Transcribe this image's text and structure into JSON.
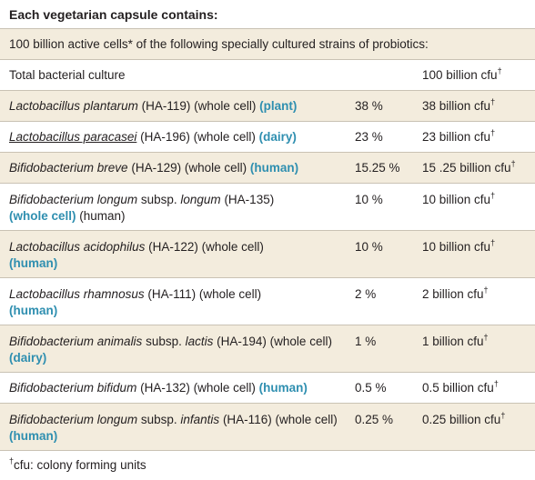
{
  "heading": "Each vegetarian capsule contains:",
  "intro": "100 billion active cells* of the following specially cultured strains of probiotics:",
  "total": {
    "label": "Total bacterial culture",
    "amount": "100 billion cfu",
    "mark": "†"
  },
  "rows": [
    {
      "genus": "Lactobacillus plantarum",
      "code": "(HA-119) (whole cell)",
      "source": "(plant)",
      "percent": "38 %",
      "amount": "38 billion cfu",
      "mark": "†"
    },
    {
      "genus": "Lactobacillus paracasei",
      "code": "(HA-196) (whole cell)",
      "source": "(dairy)",
      "percent": "23 %",
      "amount": "23 billion cfu",
      "mark": "†"
    },
    {
      "genus": "Bifidobacterium breve",
      "code": "(HA-129) (whole cell)",
      "source": "(human)",
      "percent": "15.25 %",
      "amount": "15 .25 billion cfu",
      "mark": "†"
    },
    {
      "genus": "Bifidobacterium longum",
      "subsp": "subsp.",
      "species": "longum",
      "code": "(HA-135)",
      "source": "(whole cell)",
      "tail": "(human)",
      "percent": "10 %",
      "amount": "10 billion cfu",
      "mark": "†"
    },
    {
      "genus": "Lactobacillus acidophilus",
      "code": "(HA-122) (whole cell)",
      "source": "(human)",
      "percent": "10 %",
      "amount": "10 billion cfu",
      "mark": "†"
    },
    {
      "genus": "Lactobacillus rhamnosus",
      "code": "(HA-111) (whole cell)",
      "source": "(human)",
      "percent": "2 %",
      "amount": "2 billion cfu",
      "mark": "†"
    },
    {
      "genus": "Bifidobacterium animalis",
      "subsp": "subsp.",
      "species": "lactis",
      "code": "(HA-194) (whole cell)",
      "source": "(dairy)",
      "percent": "1 %",
      "amount": "1 billion cfu",
      "mark": "†"
    },
    {
      "genus": "Bifidobacterium bifidum",
      "code": "(HA-132) (whole cell)",
      "source": "(human)",
      "percent": "0.5 %",
      "amount": "0.5 billion cfu",
      "mark": "†"
    },
    {
      "genus": "Bifidobacterium longum",
      "subsp": "subsp.",
      "species": "infantis",
      "code": "(HA-116) (whole cell)",
      "source": "(human)",
      "percent": "0.25 %",
      "amount": "0.25 billion cfu",
      "mark": "†"
    }
  ],
  "footnote": {
    "mark": "†",
    "text": "cfu: colony forming units"
  },
  "colors": {
    "band": "#f3ecdd",
    "source": "#2f8fb0",
    "rule": "#c9c2b4"
  }
}
